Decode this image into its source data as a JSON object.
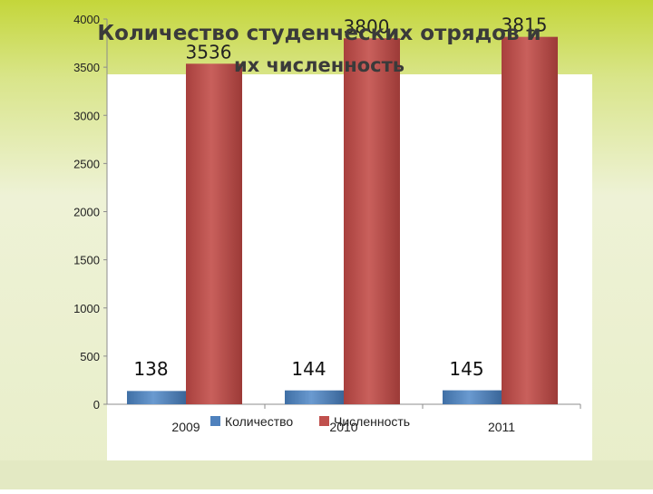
{
  "colors": {
    "background_top": "#c4d63a",
    "background_bottom": "#e6ecc4",
    "plot_area": "#ffffff",
    "series_count": "#4f81bd",
    "series_size": "#c0504d"
  },
  "chart_data": {
    "type": "bar",
    "title_line1": "Количество студенческих отрядов и",
    "title_line2": "их численность",
    "categories": [
      "2009",
      "2010",
      "2011"
    ],
    "series": [
      {
        "name": "Количество",
        "values": [
          138,
          144,
          145
        ],
        "color": "#4f81bd"
      },
      {
        "name": "Численность",
        "values": [
          3536,
          3800,
          3815
        ],
        "color": "#c0504d"
      }
    ],
    "yticks": [
      "0",
      "500",
      "1000",
      "1500",
      "2000",
      "2500",
      "3000",
      "3500",
      "4000"
    ],
    "ylim": [
      0,
      4000
    ],
    "xlabel": "",
    "ylabel": "",
    "grid": false,
    "legend": "bottom-center"
  }
}
